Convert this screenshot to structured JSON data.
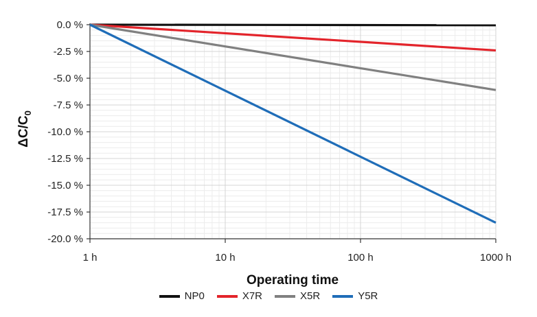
{
  "chart_data": {
    "type": "line",
    "title": "",
    "xlabel": "Operating time",
    "ylabel": "ΔC/C",
    "ylabel_subscript": "0",
    "xscale": "log",
    "x_ticks": [
      1,
      10,
      100,
      1000
    ],
    "x_tick_labels": [
      "1 h",
      "10 h",
      "100 h",
      "1000 h"
    ],
    "xlim": [
      1,
      1000
    ],
    "ylim": [
      -20,
      0
    ],
    "y_ticks": [
      0,
      -2.5,
      -5,
      -7.5,
      -10,
      -12.5,
      -15,
      -17.5,
      -20
    ],
    "y_tick_labels": [
      "0.0 %",
      "-2.5 %",
      "-5.0 %",
      "-7.5 %",
      "-10.0 %",
      "-12.5 %",
      "-15.0 %",
      "-17.5 %",
      "-20.0 %"
    ],
    "grid": true,
    "legend_position": "bottom",
    "series": [
      {
        "name": "NP0",
        "color": "#111111",
        "x": [
          1,
          1000
        ],
        "y": [
          0,
          -0.05
        ]
      },
      {
        "name": "X7R",
        "color": "#e3242b",
        "x": [
          1,
          1000
        ],
        "y": [
          0,
          -2.4
        ]
      },
      {
        "name": "X5R",
        "color": "#808080",
        "x": [
          1,
          1000
        ],
        "y": [
          0,
          -6.1
        ]
      },
      {
        "name": "Y5R",
        "color": "#1f6db8",
        "x": [
          1,
          1000
        ],
        "y": [
          0,
          -18.5
        ]
      }
    ]
  }
}
